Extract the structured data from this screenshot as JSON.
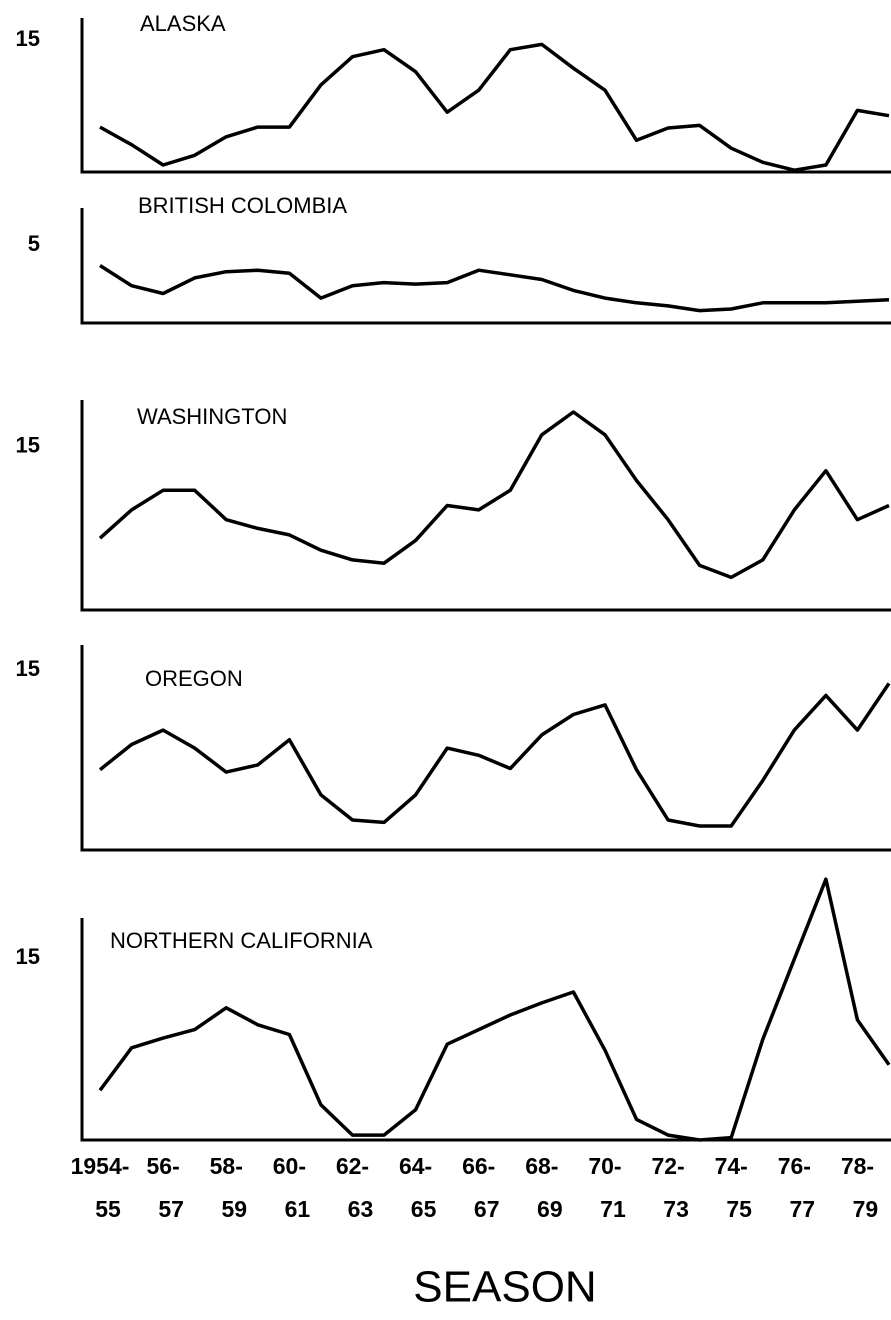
{
  "chart_data": [
    {
      "type": "line",
      "title": "ALASKA",
      "color": "#000000",
      "x": [
        1954,
        1955,
        1956,
        1957,
        1958,
        1959,
        1960,
        1961,
        1962,
        1963,
        1964,
        1965,
        1966,
        1967,
        1968,
        1969,
        1970,
        1971,
        1972,
        1973,
        1974,
        1975,
        1976,
        1977,
        1978,
        1979
      ],
      "values": [
        5.1,
        3.1,
        0.8,
        1.9,
        4.0,
        5.1,
        5.1,
        9.9,
        13.1,
        13.9,
        11.4,
        6.8,
        9.3,
        13.9,
        14.5,
        11.8,
        9.3,
        3.6,
        5.0,
        5.3,
        2.7,
        1.1,
        0.2,
        0.8,
        7.0,
        6.4
      ],
      "xlim": [
        1954,
        1979
      ],
      "ylim": [
        0,
        17.5
      ],
      "yticks": [
        15
      ]
    },
    {
      "type": "line",
      "title": "BRITISH  COLOMBIA",
      "color": "#000000",
      "x": [
        1954,
        1955,
        1956,
        1957,
        1958,
        1959,
        1960,
        1961,
        1962,
        1963,
        1964,
        1965,
        1966,
        1967,
        1968,
        1969,
        1970,
        1971,
        1972,
        1973,
        1974,
        1975,
        1976,
        1977,
        1978,
        1979
      ],
      "values": [
        3.7,
        2.4,
        1.9,
        2.9,
        3.3,
        3.4,
        3.2,
        1.6,
        2.4,
        2.6,
        2.5,
        2.6,
        3.4,
        3.1,
        2.8,
        2.1,
        1.6,
        1.3,
        1.1,
        0.8,
        0.9,
        1.3,
        1.3,
        1.3,
        1.4,
        1.5
      ],
      "xlim": [
        1954,
        1979
      ],
      "ylim": [
        0,
        7.4
      ],
      "yticks": [
        5
      ]
    },
    {
      "type": "line",
      "title": "WASHINGTON",
      "color": "#000000",
      "x": [
        1954,
        1955,
        1956,
        1957,
        1958,
        1959,
        1960,
        1961,
        1962,
        1963,
        1964,
        1965,
        1966,
        1967,
        1968,
        1969,
        1970,
        1971,
        1972,
        1973,
        1974,
        1975,
        1976,
        1977,
        1978,
        1979
      ],
      "values": [
        6.6,
        9.2,
        11.0,
        11.0,
        8.3,
        7.5,
        6.9,
        5.5,
        4.6,
        4.3,
        6.4,
        9.6,
        9.2,
        11.0,
        16.1,
        18.2,
        16.1,
        11.9,
        8.3,
        4.1,
        3.0,
        4.6,
        9.2,
        12.8,
        8.3,
        9.6
      ],
      "xlim": [
        1954,
        1979
      ],
      "ylim": [
        0,
        19.3
      ],
      "yticks": [
        15
      ]
    },
    {
      "type": "line",
      "title": "OREGON",
      "color": "#000000",
      "x": [
        1954,
        1955,
        1956,
        1957,
        1958,
        1959,
        1960,
        1961,
        1962,
        1963,
        1964,
        1965,
        1966,
        1967,
        1968,
        1969,
        1970,
        1971,
        1972,
        1973,
        1974,
        1975,
        1976,
        1977,
        1978,
        1979
      ],
      "values": [
        6.7,
        8.8,
        10.0,
        8.5,
        6.5,
        7.1,
        9.2,
        4.6,
        2.5,
        2.3,
        4.6,
        8.5,
        7.9,
        6.8,
        9.6,
        11.3,
        12.1,
        6.7,
        2.5,
        2.0,
        2.0,
        5.8,
        10.0,
        12.9,
        10.0,
        13.9
      ],
      "xlim": [
        1954,
        1979
      ],
      "ylim": [
        0,
        17.1
      ],
      "yticks": [
        15
      ]
    },
    {
      "type": "line",
      "title": "NORTHERN  CALIFORNIA",
      "color": "#000000",
      "x": [
        1954,
        1955,
        1956,
        1957,
        1958,
        1959,
        1960,
        1961,
        1962,
        1963,
        1964,
        1965,
        1966,
        1967,
        1968,
        1969,
        1970,
        1971,
        1972,
        1973,
        1974,
        1975,
        1976,
        1977,
        1978,
        1979
      ],
      "values": [
        4.1,
        7.6,
        8.4,
        9.1,
        10.9,
        9.5,
        8.7,
        2.9,
        0.4,
        0.4,
        2.5,
        7.9,
        9.1,
        10.3,
        11.3,
        12.2,
        7.4,
        1.7,
        0.4,
        0,
        0.2,
        8.3,
        14.9,
        21.5,
        9.9,
        6.2
      ],
      "xlim": [
        1954,
        1979
      ],
      "ylim": [
        0,
        18.3
      ],
      "yticks": [
        15
      ],
      "xticks": [
        {
          "value": 1954,
          "label": [
            "1954-",
            "55"
          ]
        },
        {
          "value": 1956,
          "label": [
            "56-",
            "57"
          ]
        },
        {
          "value": 1958,
          "label": [
            "58-",
            "59"
          ]
        },
        {
          "value": 1960,
          "label": [
            "60-",
            "61"
          ]
        },
        {
          "value": 1962,
          "label": [
            "62-",
            "63"
          ]
        },
        {
          "value": 1964,
          "label": [
            "64-",
            "65"
          ]
        },
        {
          "value": 1966,
          "label": [
            "66-",
            "67"
          ]
        },
        {
          "value": 1968,
          "label": [
            "68-",
            "69"
          ]
        },
        {
          "value": 1970,
          "label": [
            "70-",
            "71"
          ]
        },
        {
          "value": 1972,
          "label": [
            "72-",
            "73"
          ]
        },
        {
          "value": 1974,
          "label": [
            "74-",
            "75"
          ]
        },
        {
          "value": 1976,
          "label": [
            "76-",
            "77"
          ]
        },
        {
          "value": 1978,
          "label": [
            "78-",
            "79"
          ]
        }
      ],
      "xlabel": "SEASON"
    }
  ]
}
